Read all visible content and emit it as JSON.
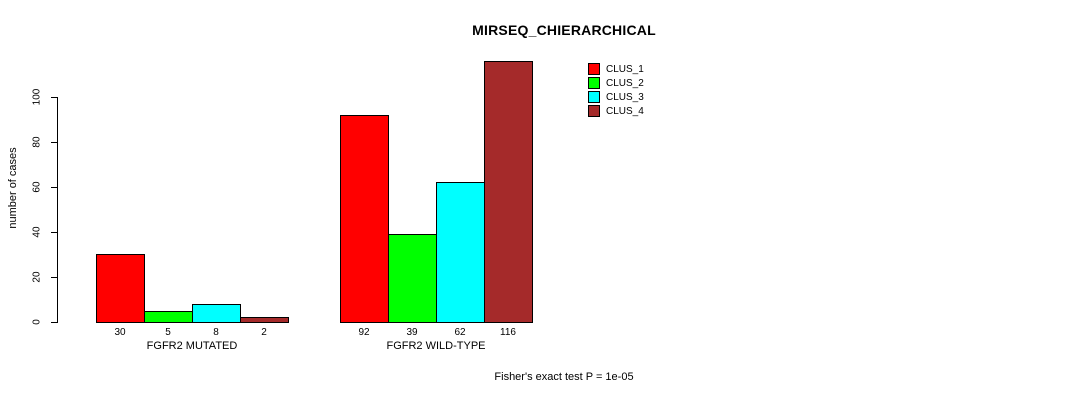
{
  "figure": {
    "background": "#ffffff"
  },
  "chart_data": {
    "type": "bar",
    "title": "MIRSEQ_CHIERARCHICAL",
    "ylabel": "number of cases",
    "xlabel": "",
    "categories": [
      "FGFR2 MUTATED",
      "FGFR2 WILD-TYPE"
    ],
    "series": [
      {
        "name": "CLUS_1",
        "color": "#FF0000",
        "values": [
          30,
          92
        ]
      },
      {
        "name": "CLUS_2",
        "color": "#00FF00",
        "values": [
          5,
          39
        ]
      },
      {
        "name": "CLUS_3",
        "color": "#00FFFF",
        "values": [
          8,
          62
        ]
      },
      {
        "name": "CLUS_4",
        "color": "#A52A2A",
        "values": [
          2,
          116
        ]
      }
    ],
    "bar_value_labels": [
      [
        "30",
        "5",
        "8",
        "2"
      ],
      [
        "92",
        "39",
        "62",
        "116"
      ]
    ],
    "yticks": [
      0,
      20,
      40,
      60,
      80,
      100
    ],
    "ylim": [
      0,
      100
    ],
    "grid": false,
    "legend": {
      "position": "top-right",
      "entries": [
        "CLUS_1",
        "CLUS_2",
        "CLUS_3",
        "CLUS_4"
      ]
    },
    "annotation": "Fisher's exact test P = 1e-05",
    "axis_color": "#000000",
    "bar_border_color": "#000000"
  }
}
